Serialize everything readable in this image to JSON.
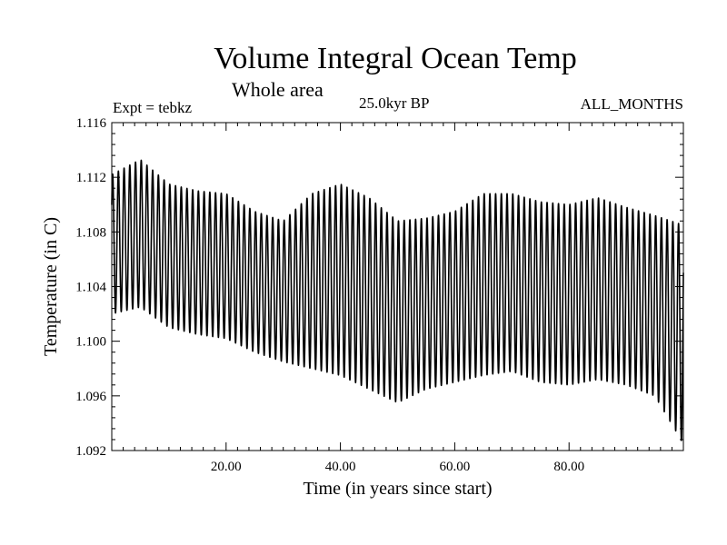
{
  "chart_data": {
    "type": "line",
    "title": "Volume Integral Ocean Temp",
    "subtitle": "Whole area",
    "experiment_label": "Expt = tebkz",
    "period_label": "25.0kyr BP",
    "months_label": "ALL_MONTHS",
    "xlabel": "Time (in years since start)",
    "ylabel": "Temperature (in C)",
    "xlim": [
      0,
      100
    ],
    "ylim": [
      1.092,
      1.116
    ],
    "x_ticks": [
      20,
      40,
      60,
      80
    ],
    "x_tick_labels": [
      "20.00",
      "40.00",
      "60.00",
      "80.00"
    ],
    "y_ticks": [
      1.092,
      1.096,
      1.1,
      1.104,
      1.108,
      1.112,
      1.116
    ],
    "y_tick_labels": [
      "1.092",
      "1.096",
      "1.100",
      "1.104",
      "1.108",
      "1.112",
      "1.116"
    ],
    "grid": false,
    "series": [
      {
        "name": "Volume integral ocean temperature",
        "x": [
          0,
          5,
          10,
          15,
          20,
          25,
          30,
          35,
          40,
          45,
          50,
          55,
          60,
          65,
          70,
          75,
          80,
          85,
          90,
          95,
          100
        ],
        "annual_max": [
          1.1122,
          1.1133,
          1.1115,
          1.111,
          1.1108,
          1.1095,
          1.1088,
          1.1108,
          1.1115,
          1.1105,
          1.1088,
          1.109,
          1.1095,
          1.1108,
          1.1108,
          1.1102,
          1.11,
          1.1105,
          1.1098,
          1.1092,
          1.1085
        ],
        "annual_min": [
          1.102,
          1.1025,
          1.101,
          1.1005,
          1.1002,
          1.0992,
          1.0985,
          1.098,
          1.0975,
          1.0965,
          1.0955,
          1.0965,
          1.097,
          1.0975,
          1.0978,
          1.097,
          1.0968,
          1.0972,
          1.0968,
          1.096,
          1.0925
        ]
      }
    ]
  }
}
